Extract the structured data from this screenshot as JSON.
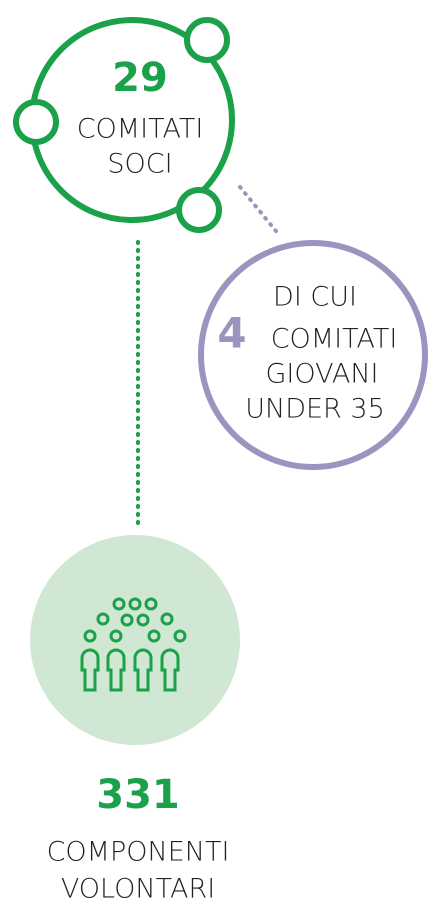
{
  "nodes": [
    {
      "number": "29",
      "lines": [
        "COMITATI",
        "SOCI"
      ]
    },
    {
      "prefix": "DI CUI",
      "number": "4",
      "lines": [
        "COMITATI",
        "GIOVANI",
        "UNDER 35"
      ]
    },
    {
      "number": "331",
      "lines": [
        "COMPONENTI",
        "VOLONTARI"
      ]
    }
  ]
}
